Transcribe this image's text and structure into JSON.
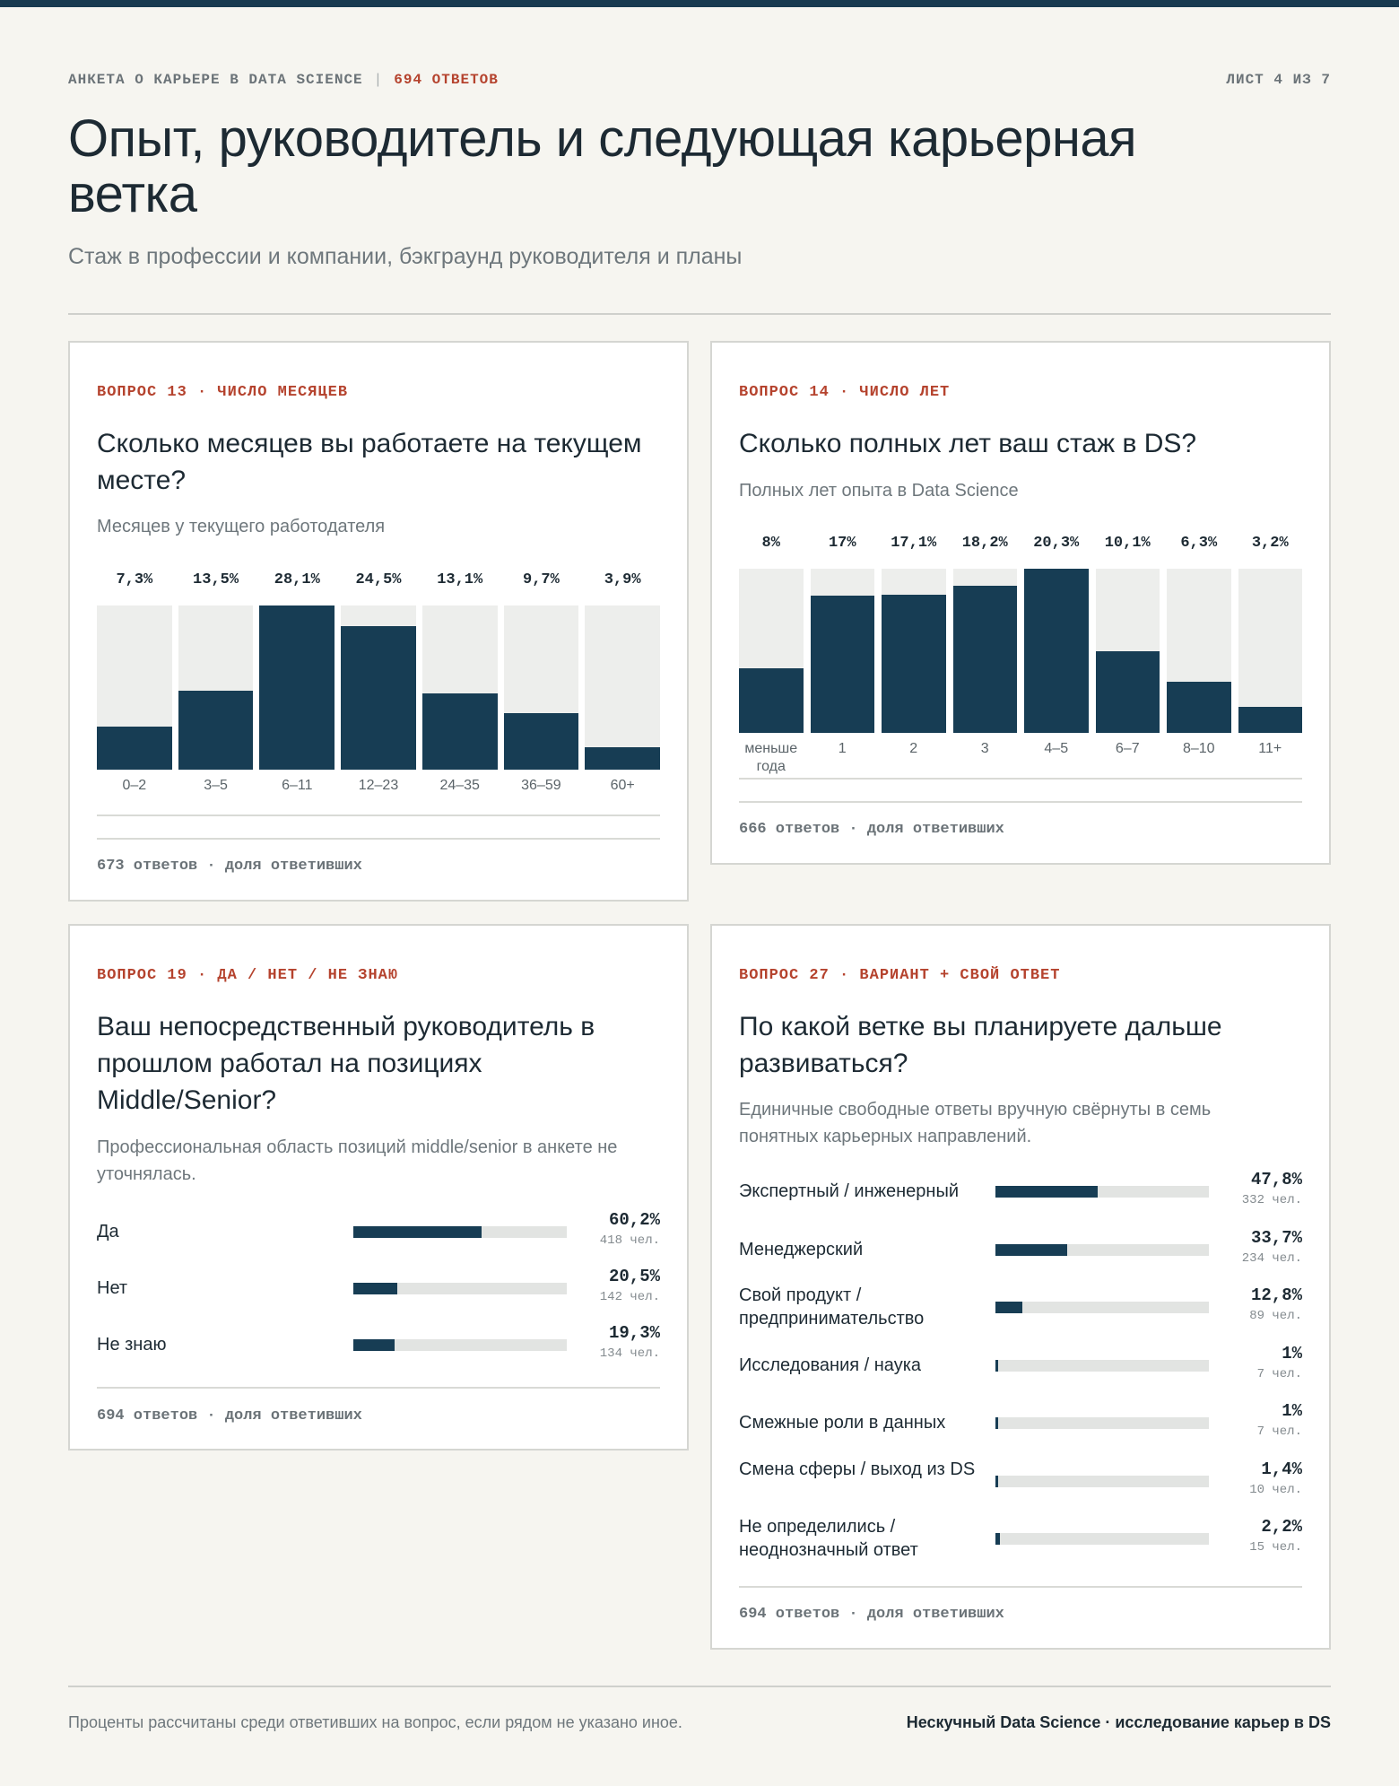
{
  "header": {
    "survey": "АНКЕТА О КАРЬЕРЕ В DATA SCIENCE",
    "responses": "694 ОТВЕТОВ",
    "sheet": "ЛИСТ 4 ИЗ 7",
    "title": "Опыт, руководитель и следующая карьерная ветка",
    "subtitle": "Стаж в профессии и компании, бэкграунд руководителя и планы"
  },
  "colors": {
    "accent": "#b5432e",
    "bar": "#173d54",
    "track": "#edeeec",
    "background": "#f6f5f0"
  },
  "q13": {
    "tag": "ВОПРОС 13 · ЧИСЛО МЕСЯЦЕВ",
    "title": "Сколько месяцев вы работаете на текущем месте?",
    "subtitle": "Месяцев у текущего работодателя",
    "footer": "673 ответов · доля ответивших",
    "chart_data": {
      "type": "bar",
      "categories": [
        "0–2",
        "3–5",
        "6–11",
        "12–23",
        "24–35",
        "36–59",
        "60+"
      ],
      "values": [
        7.3,
        13.5,
        28.1,
        24.5,
        13.1,
        9.7,
        3.9
      ],
      "labels": [
        "7,3%",
        "13,5%",
        "28,1%",
        "24,5%",
        "13,1%",
        "9,7%",
        "3,9%"
      ]
    }
  },
  "q14": {
    "tag": "ВОПРОС 14 · ЧИСЛО ЛЕТ",
    "title": "Сколько полных лет ваш стаж в DS?",
    "subtitle": "Полных лет опыта в Data Science",
    "footer": "666 ответов · доля ответивших",
    "chart_data": {
      "type": "bar",
      "categories": [
        "меньше года",
        "1",
        "2",
        "3",
        "4–5",
        "6–7",
        "8–10",
        "11+"
      ],
      "values": [
        8,
        17,
        17.1,
        18.2,
        20.3,
        10.1,
        6.3,
        3.2
      ],
      "labels": [
        "8%",
        "17%",
        "17,1%",
        "18,2%",
        "20,3%",
        "10,1%",
        "6,3%",
        "3,2%"
      ]
    }
  },
  "q19": {
    "tag": "ВОПРОС 19 · ДА / НЕТ / НЕ ЗНАЮ",
    "title": "Ваш непосредственный руководитель в прошлом работал на позициях Middle/Senior?",
    "subtitle": "Профессиональная область позиций middle/senior в анкете не уточнялась.",
    "footer": "694 ответов · доля ответивших",
    "rows": [
      {
        "label": "Да",
        "value": 60.2,
        "pct": "60,2%",
        "count": "418 чел."
      },
      {
        "label": "Нет",
        "value": 20.5,
        "pct": "20,5%",
        "count": "142 чел."
      },
      {
        "label": "Не знаю",
        "value": 19.3,
        "pct": "19,3%",
        "count": "134 чел."
      }
    ]
  },
  "q27": {
    "tag": "ВОПРОС 27 · ВАРИАНТ + СВОЙ ОТВЕТ",
    "title": "По какой ветке вы планируете дальше развиваться?",
    "subtitle": "Единичные свободные ответы вручную свёрнуты в семь понятных карьерных направлений.",
    "footer": "694 ответов · доля ответивших",
    "rows": [
      {
        "label": "Экспертный / инженерный",
        "value": 47.8,
        "pct": "47,8%",
        "count": "332 чел."
      },
      {
        "label": "Менеджерский",
        "value": 33.7,
        "pct": "33,7%",
        "count": "234 чел."
      },
      {
        "label": "Свой продукт / предпринимательство",
        "value": 12.8,
        "pct": "12,8%",
        "count": "89 чел."
      },
      {
        "label": "Исследования / наука",
        "value": 1,
        "pct": "1%",
        "count": "7 чел."
      },
      {
        "label": "Смежные роли в данных",
        "value": 1,
        "pct": "1%",
        "count": "7 чел."
      },
      {
        "label": "Смена сферы / выход из DS",
        "value": 1.4,
        "pct": "1,4%",
        "count": "10 чел."
      },
      {
        "label": "Не определились / неоднозначный ответ",
        "value": 2.2,
        "pct": "2,2%",
        "count": "15 чел."
      }
    ]
  },
  "footer": {
    "note": "Проценты рассчитаны среди ответивших на вопрос, если рядом не указано иное.",
    "brand": "Нескучный Data Science · исследование карьер в DS"
  }
}
